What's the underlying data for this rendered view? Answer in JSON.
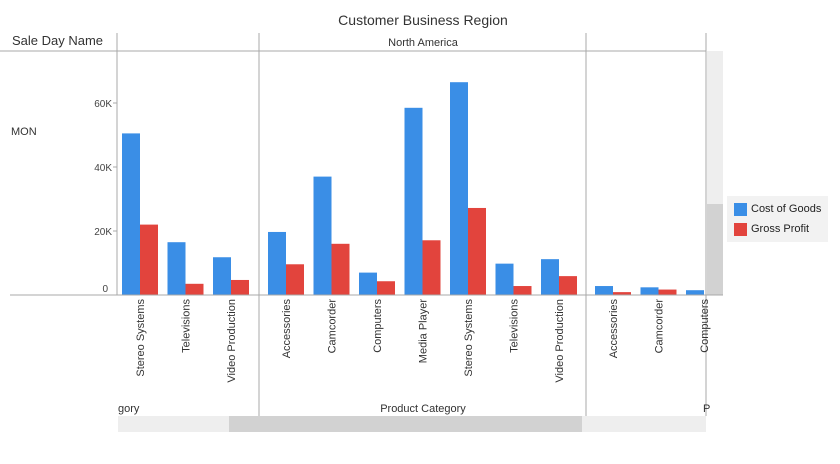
{
  "chart_data": {
    "type": "bar",
    "title": "Customer Business Region",
    "row_header": "Sale Day Name",
    "row_label": "MON",
    "region_label": "North America",
    "xlabel": "Product Category",
    "xlabel_left_partial": "gory",
    "xlabel_right_partial": "P",
    "y_ticks": [
      "0",
      "20K",
      "40K",
      "60K"
    ],
    "ylim": [
      0,
      75000
    ],
    "groups": [
      {
        "categories": [
          "Stereo Systems",
          "Televisions",
          "Video Production"
        ]
      },
      {
        "categories": [
          "Accessories",
          "Camcorder",
          "Computers",
          "Media Player",
          "Stereo Systems",
          "Televisions",
          "Video Production"
        ]
      },
      {
        "categories": [
          "Accessories",
          "Camcorder",
          "Computers"
        ]
      }
    ],
    "series": [
      {
        "name": "Cost of Goods",
        "color": "#3a8ee6",
        "values": [
          50500,
          16500,
          11800,
          19700,
          37000,
          7000,
          58500,
          66500,
          9800,
          11200,
          2800,
          2400,
          1500
        ]
      },
      {
        "name": "Gross Profit",
        "color": "#e2443d",
        "values": [
          22000,
          3500,
          4700,
          9600,
          16000,
          4300,
          17100,
          27200,
          2800,
          5900,
          900,
          1700,
          0
        ]
      }
    ],
    "legend_position": "right",
    "grid": false
  }
}
